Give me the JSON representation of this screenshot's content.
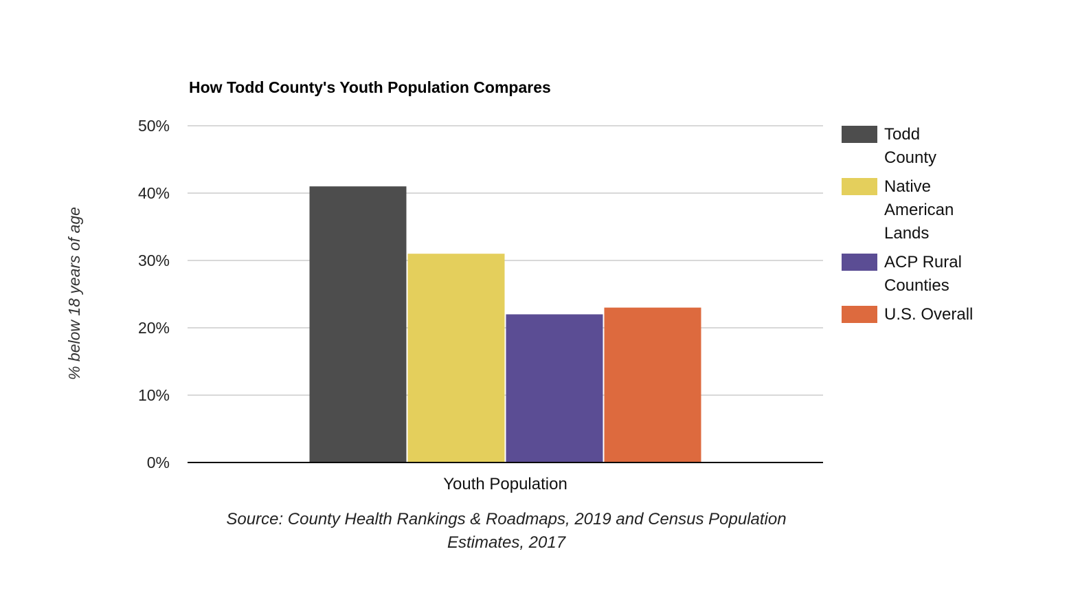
{
  "chart_data": {
    "type": "bar",
    "title": "How Todd County's Youth Population Compares",
    "categories": [
      "Youth Population"
    ],
    "series": [
      {
        "name": "Todd County",
        "values": [
          41
        ],
        "color": "#4d4d4d"
      },
      {
        "name": "Native American Lands",
        "values": [
          31
        ],
        "color": "#e4cf5c"
      },
      {
        "name": "ACP Rural Counties",
        "values": [
          22
        ],
        "color": "#5b4d94"
      },
      {
        "name": "U.S. Overall",
        "values": [
          23
        ],
        "color": "#dd6a3e"
      }
    ],
    "legend_labels": [
      [
        "Todd",
        "County"
      ],
      [
        "Native",
        "American",
        "Lands"
      ],
      [
        "ACP Rural",
        "Counties"
      ],
      [
        "U.S. Overall"
      ]
    ],
    "ylabel": "% below 18 years of age",
    "xlabel": "",
    "ylim": [
      0,
      50
    ],
    "yticks": [
      0,
      10,
      20,
      30,
      40,
      50
    ],
    "ytick_labels": [
      "0%",
      "10%",
      "20%",
      "30%",
      "40%",
      "50%"
    ],
    "grid": true,
    "legend_position": "right",
    "source_lines": [
      "Source: County Health Rankings & Roadmaps, 2019 and Census Population",
      "Estimates, 2017"
    ]
  }
}
